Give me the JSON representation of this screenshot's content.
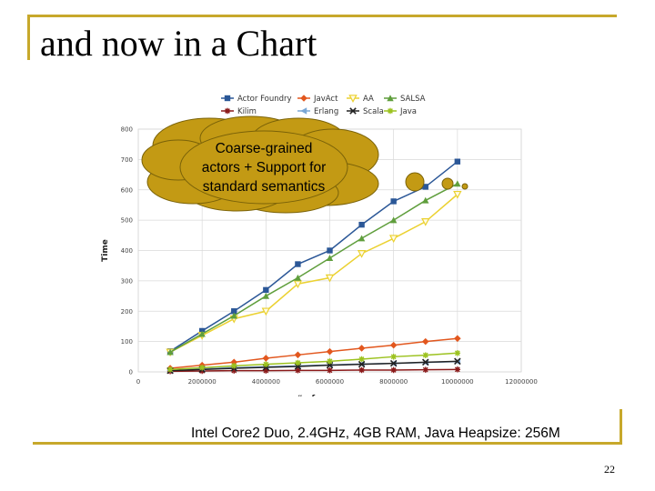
{
  "slide": {
    "title": "and now in a Chart",
    "caption": "Intel Core2 Duo, 2.4GHz, 4GB RAM, Java Heapsize: 256M",
    "page_number": "22",
    "accent_color": "#c7a82b"
  },
  "callout": {
    "lines": [
      "Coarse-grained",
      "actors + Support for",
      "standard semantics"
    ],
    "fill_color": "#c39a14"
  },
  "chart_data": {
    "type": "line",
    "xlabel": "# of messages",
    "ylabel": "Time",
    "xlim": [
      0,
      12000000
    ],
    "ylim": [
      0,
      800
    ],
    "x_ticks": [
      0,
      2000000,
      4000000,
      6000000,
      8000000,
      10000000,
      12000000
    ],
    "y_ticks": [
      0,
      100,
      200,
      300,
      400,
      500,
      600,
      700,
      800
    ],
    "grid": true,
    "legend_position": "top",
    "x": [
      1000000,
      2000000,
      3000000,
      4000000,
      5000000,
      6000000,
      7000000,
      8000000,
      9000000,
      10000000
    ],
    "series": [
      {
        "name": "Actor Foundry",
        "color": "#2b5797",
        "marker": "square",
        "values": [
          68,
          135,
          200,
          270,
          355,
          400,
          485,
          562,
          610,
          693
        ]
      },
      {
        "name": "JavAct",
        "color": "#e2571e",
        "marker": "diamond",
        "values": [
          12,
          22,
          32,
          45,
          56,
          67,
          78,
          88,
          100,
          110
        ]
      },
      {
        "name": "AA",
        "color": "#ebd130",
        "marker": "triangle-down",
        "values": [
          65,
          120,
          175,
          200,
          290,
          310,
          390,
          440,
          495,
          585
        ]
      },
      {
        "name": "SALSA",
        "color": "#5f9e3c",
        "marker": "triangle-up",
        "values": [
          65,
          125,
          185,
          250,
          310,
          375,
          440,
          500,
          565,
          620
        ]
      },
      {
        "name": "Kilim",
        "color": "#8b1a1a",
        "marker": "star",
        "values": [
          2,
          3,
          4,
          4,
          5,
          5,
          6,
          6,
          7,
          8
        ]
      },
      {
        "name": "Erlang",
        "color": "#7aa7d6",
        "marker": "triangle-left",
        "values": [
          5,
          10,
          14,
          17,
          20,
          23,
          26,
          28,
          31,
          34
        ]
      },
      {
        "name": "Scala",
        "color": "#222222",
        "marker": "cross",
        "values": [
          4,
          8,
          12,
          15,
          18,
          22,
          25,
          28,
          32,
          35
        ]
      },
      {
        "name": "Java",
        "color": "#9cc21f",
        "marker": "asterisk",
        "values": [
          8,
          14,
          20,
          25,
          30,
          35,
          42,
          50,
          55,
          62
        ]
      }
    ]
  }
}
